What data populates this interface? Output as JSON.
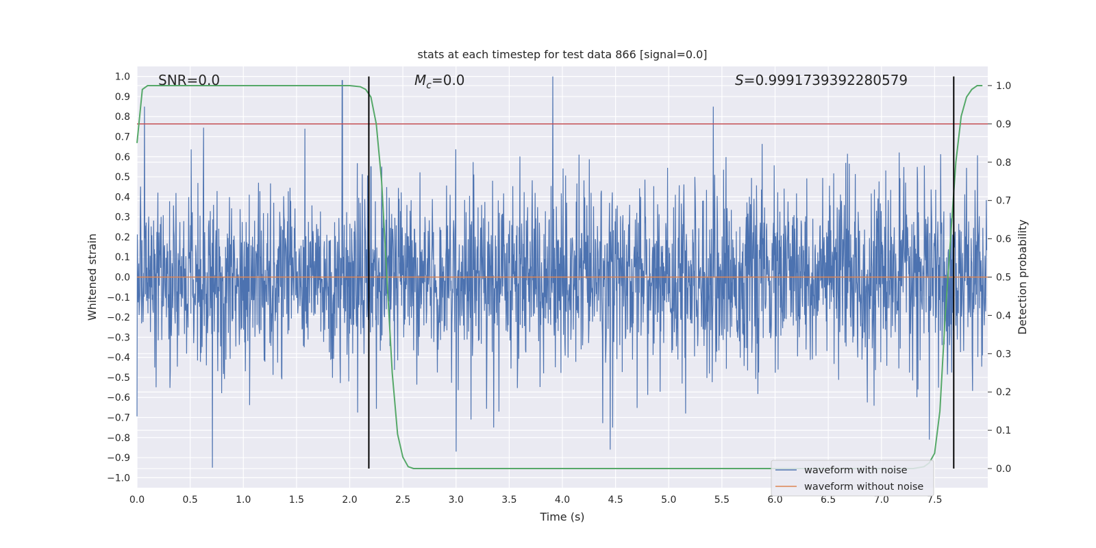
{
  "chart_data": {
    "type": "line",
    "title": "stats at each timestep for test data 866 [signal=0.0]",
    "xlabel": "Time (s)",
    "ylabel": "Whitened strain",
    "y2label": "Detection probability",
    "xlim": [
      0,
      8
    ],
    "ylim": [
      -1.05,
      1.05
    ],
    "y2lim": [
      -0.05,
      1.05
    ],
    "x_ticks": [
      0.0,
      0.5,
      1.0,
      1.5,
      2.0,
      2.5,
      3.0,
      3.5,
      4.0,
      4.5,
      5.0,
      5.5,
      6.0,
      6.5,
      7.0,
      7.5
    ],
    "x_tick_labels": [
      "0.0",
      "0.5",
      "1.0",
      "1.5",
      "2.0",
      "2.5",
      "3.0",
      "3.5",
      "4.0",
      "4.5",
      "5.0",
      "5.5",
      "6.0",
      "6.5",
      "7.0",
      "7.5"
    ],
    "y_ticks": [
      -1.0,
      -0.9,
      -0.8,
      -0.7,
      -0.6,
      -0.5,
      -0.4,
      -0.3,
      -0.2,
      -0.1,
      0.0,
      0.1,
      0.2,
      0.3,
      0.4,
      0.5,
      0.6,
      0.7,
      0.8,
      0.9,
      1.0
    ],
    "y_tick_labels": [
      "−1.0",
      "−0.9",
      "−0.8",
      "−0.7",
      "−0.6",
      "−0.5",
      "−0.4",
      "−0.3",
      "−0.2",
      "−0.1",
      "0.0",
      "0.1",
      "0.2",
      "0.3",
      "0.4",
      "0.5",
      "0.6",
      "0.7",
      "0.8",
      "0.9",
      "1.0"
    ],
    "y2_ticks": [
      0.0,
      0.1,
      0.2,
      0.3,
      0.4,
      0.5,
      0.6,
      0.7,
      0.8,
      0.9,
      1.0
    ],
    "y2_tick_labels": [
      "0.0",
      "0.1",
      "0.2",
      "0.3",
      "0.4",
      "0.5",
      "0.6",
      "0.7",
      "0.8",
      "0.9",
      "1.0"
    ],
    "grid": true,
    "legend_position": "bottom-right",
    "annotations": {
      "snr": "SNR=0.0",
      "mc_symbol": "M",
      "mc_sub": "c",
      "mc_value": "=0.0",
      "s_symbol": "S",
      "s_value": "=0.9991739392280579"
    },
    "noise_envelope": {
      "description_free": true,
      "typical_amplitude": 0.4,
      "peak_positive": [
        [
          0.07,
          0.85
        ],
        [
          1.93,
          0.98
        ],
        [
          3.91,
          1.0
        ],
        [
          2.2,
          0.55
        ],
        [
          5.42,
          0.85
        ]
      ],
      "peak_negative": [
        [
          0.71,
          -0.95
        ],
        [
          3.0,
          -0.87
        ],
        [
          4.45,
          -0.86
        ],
        [
          7.45,
          -0.81
        ]
      ]
    },
    "series": [
      {
        "name": "waveform with noise",
        "color": "#4c72b0",
        "axis": "left",
        "seed": 866,
        "noise_amplitude": 0.22
      },
      {
        "name": "waveform without noise",
        "color": "#dd8452",
        "axis": "left",
        "constant": 0.0
      },
      {
        "color": "#55a868",
        "axis": "right",
        "x": [
          0.0,
          0.05,
          0.1,
          0.2,
          0.5,
          1.0,
          1.5,
          2.0,
          2.1,
          2.15,
          2.2,
          2.25,
          2.3,
          2.35,
          2.4,
          2.45,
          2.5,
          2.55,
          2.6,
          2.7,
          3.0,
          4.0,
          5.0,
          6.0,
          7.0,
          7.3,
          7.4,
          7.45,
          7.5,
          7.55,
          7.6,
          7.65,
          7.7,
          7.75,
          7.8,
          7.85,
          7.9,
          7.95
        ],
        "values": [
          0.85,
          0.99,
          1.0,
          1.0,
          1.0,
          1.0,
          1.0,
          1.0,
          0.997,
          0.99,
          0.97,
          0.9,
          0.75,
          0.5,
          0.25,
          0.09,
          0.03,
          0.005,
          0.0,
          0.0,
          0.0,
          0.0,
          0.0,
          0.0,
          0.0,
          0.0,
          0.005,
          0.015,
          0.04,
          0.15,
          0.4,
          0.6,
          0.8,
          0.92,
          0.97,
          0.99,
          1.0,
          1.0
        ]
      }
    ],
    "threshold_line": {
      "axis": "right",
      "value": 0.9,
      "color": "#c44e52"
    },
    "vertical_markers": {
      "x": [
        2.18,
        7.68
      ],
      "ymin_data": -0.95,
      "ymax_data": 1.0,
      "color": "#000000"
    }
  }
}
